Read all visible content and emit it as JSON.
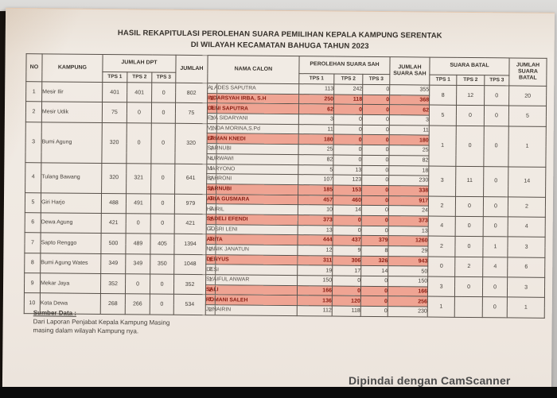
{
  "photo": {
    "scanner_watermark": "Dipindai dengan CamScanner"
  },
  "document": {
    "title_line1": "HASIL REKAPITULASI PEROLEHAN SUARA PEMILIHAN KEPALA KAMPUNG SERENTAK",
    "title_line2": "DI WILAYAH KECAMATAN BAHUGA TAHUN 2023",
    "source": {
      "heading": "Sumber Data :",
      "line1": "Dari Laporan Penjabat Kepala Kampung Masing",
      "line2": "masing dalam wilayah Kampung nya."
    }
  },
  "table": {
    "highlight_color": "#efa493",
    "highlight_text_color": "#8b2015",
    "headers": {
      "no": "NO",
      "kampung": "KAMPUNG",
      "jumlah_dpt": "JUMLAH DPT",
      "jumlah": "JUMLAH",
      "nama_calon": "NAMA CALON",
      "perolehan_suara_sah": "PEROLEHAN SUARA SAH",
      "jumlah_suara_sah": "JUMLAH SUARA SAH",
      "suara_batal": "SUARA BATAL",
      "jumlah_suara_batal": "JUMLAH SUARA BATAL",
      "tps": [
        "TPS 1",
        "TPS 2",
        "TPS 3"
      ]
    },
    "rows": [
      {
        "no": "1",
        "kampung": "Mesir Ilir",
        "dpt": [
          "401",
          "401",
          "0"
        ],
        "jumlah": "802",
        "candidates": [
          {
            "num": "1.",
            "name": "A. ADES SAPUTRA",
            "votes": [
              "113",
              "242",
              "0"
            ],
            "total": "355",
            "winner": false
          },
          {
            "num": "2.",
            "name": "INDARSYAH IRBA, S.H",
            "votes": [
              "250",
              "118",
              "0"
            ],
            "total": "368",
            "winner": true
          }
        ],
        "batal": [
          "8",
          "12",
          "0"
        ],
        "batal_total": "20"
      },
      {
        "no": "2",
        "kampung": "Mesir Udik",
        "dpt": [
          "75",
          "0",
          "0"
        ],
        "jumlah": "75",
        "candidates": [
          {
            "num": "1.",
            "name": "DENI SAPUTRA",
            "votes": [
              "62",
              "0",
              "0"
            ],
            "total": "62",
            "winner": true
          },
          {
            "num": "2.",
            "name": "EVA SIDARYANI",
            "votes": [
              "3",
              "0",
              "0"
            ],
            "total": "3",
            "winner": false
          }
        ],
        "batal": [
          "5",
          "0",
          "0"
        ],
        "batal_total": "5"
      },
      {
        "no": "3",
        "kampung": "Bumi Agung",
        "dpt": [
          "320",
          "0",
          "0"
        ],
        "jumlah": "320",
        "candidates": [
          {
            "num": "1.",
            "name": "VINDA MORINA,S.Pd",
            "votes": [
              "11",
              "0",
              "0"
            ],
            "total": "11",
            "winner": false
          },
          {
            "num": "2.",
            "name": "ERMAN KNEDI",
            "votes": [
              "180",
              "0",
              "0"
            ],
            "total": "180",
            "winner": true
          },
          {
            "num": "3.",
            "name": "SARNUBI",
            "votes": [
              "25",
              "0",
              "0"
            ],
            "total": "25",
            "winner": false
          },
          {
            "num": "4.",
            "name": "NURWAWI",
            "votes": [
              "82",
              "0",
              "0"
            ],
            "total": "82",
            "winner": false
          }
        ],
        "batal": [
          "1",
          "0",
          "0"
        ],
        "batal_total": "1"
      },
      {
        "no": "4",
        "kampung": "Tulang Bawang",
        "dpt": [
          "320",
          "321",
          "0"
        ],
        "jumlah": "641",
        "candidates": [
          {
            "num": "1.",
            "name": "MARYONO",
            "votes": [
              "5",
              "13",
              "0"
            ],
            "total": "18",
            "winner": false
          },
          {
            "num": "2.",
            "name": "BAHRONI",
            "votes": [
              "107",
              "123",
              "0"
            ],
            "total": "230",
            "winner": false
          },
          {
            "num": "3.",
            "name": "SARNUBI",
            "votes": [
              "185",
              "153",
              "0"
            ],
            "total": "338",
            "winner": true
          }
        ],
        "batal": [
          "3",
          "11",
          "0"
        ],
        "batal_total": "14"
      },
      {
        "no": "5",
        "kampung": "Giri Harjo",
        "dpt": [
          "488",
          "491",
          "0"
        ],
        "jumlah": "979",
        "candidates": [
          {
            "num": "1.",
            "name": "ARIA GUSMARA",
            "votes": [
              "457",
              "460",
              "0"
            ],
            "total": "917",
            "winner": true
          },
          {
            "num": "2.",
            "name": "HAIRIL",
            "votes": [
              "10",
              "14",
              "0"
            ],
            "total": "24",
            "winner": false
          }
        ],
        "batal": [
          "2",
          "0",
          "0"
        ],
        "batal_total": "2"
      },
      {
        "no": "6",
        "kampung": "Dewa Agung",
        "dpt": [
          "421",
          "0",
          "0"
        ],
        "jumlah": "421",
        "candidates": [
          {
            "num": "1.",
            "name": "SADELI EFENDI",
            "votes": [
              "373",
              "0",
              "0"
            ],
            "total": "373",
            "winner": true
          },
          {
            "num": "2.",
            "name": "GOSRI LENI",
            "votes": [
              "13",
              "0",
              "0"
            ],
            "total": "13",
            "winner": false
          }
        ],
        "batal": [
          "4",
          "0",
          "0"
        ],
        "batal_total": "4"
      },
      {
        "no": "7",
        "kampung": "Sapto Renggo",
        "dpt": [
          "500",
          "489",
          "405"
        ],
        "jumlah": "1394",
        "candidates": [
          {
            "num": "1.",
            "name": "ARITA",
            "votes": [
              "444",
              "437",
              "379"
            ],
            "total": "1260",
            "winner": true
          },
          {
            "num": "2.",
            "name": "NANIK JANATUN",
            "votes": [
              "12",
              "9",
              "8"
            ],
            "total": "29",
            "winner": false
          }
        ],
        "batal": [
          "2",
          "0",
          "1"
        ],
        "batal_total": "3"
      },
      {
        "no": "8",
        "kampung": "Bumi Agung Wates",
        "dpt": [
          "349",
          "349",
          "350"
        ],
        "jumlah": "1048",
        "candidates": [
          {
            "num": "1.",
            "name": "DENYUS",
            "votes": [
              "311",
              "306",
              "326"
            ],
            "total": "943",
            "winner": true
          },
          {
            "num": "2.",
            "name": "DESI",
            "votes": [
              "19",
              "17",
              "14"
            ],
            "total": "50",
            "winner": false
          }
        ],
        "batal": [
          "0",
          "2",
          "4"
        ],
        "batal_total": "6"
      },
      {
        "no": "9",
        "kampung": "Mekar Jaya",
        "dpt": [
          "352",
          "0",
          "0"
        ],
        "jumlah": "352",
        "candidates": [
          {
            "num": "1.",
            "name": "SYAIFUL ANWAR",
            "votes": [
              "150",
              "0",
              "0"
            ],
            "total": "150",
            "winner": false
          },
          {
            "num": "2.",
            "name": "SALI",
            "votes": [
              "166",
              "0",
              "0"
            ],
            "total": "166",
            "winner": true
          }
        ],
        "batal": [
          "3",
          "0",
          "0"
        ],
        "batal_total": "3"
      },
      {
        "no": "10",
        "kampung": "Kota Dewa",
        "dpt": [
          "268",
          "266",
          "0"
        ],
        "jumlah": "534",
        "candidates": [
          {
            "num": "1.",
            "name": "ROMANI SALEH",
            "votes": [
              "136",
              "120",
              "0"
            ],
            "total": "256",
            "winner": true
          },
          {
            "num": "2.",
            "name": "JUNAIRIN",
            "votes": [
              "112",
              "118",
              "0"
            ],
            "total": "230",
            "winner": false
          }
        ],
        "batal": [
          "1",
          "",
          "0"
        ],
        "batal_total": "1"
      }
    ]
  }
}
